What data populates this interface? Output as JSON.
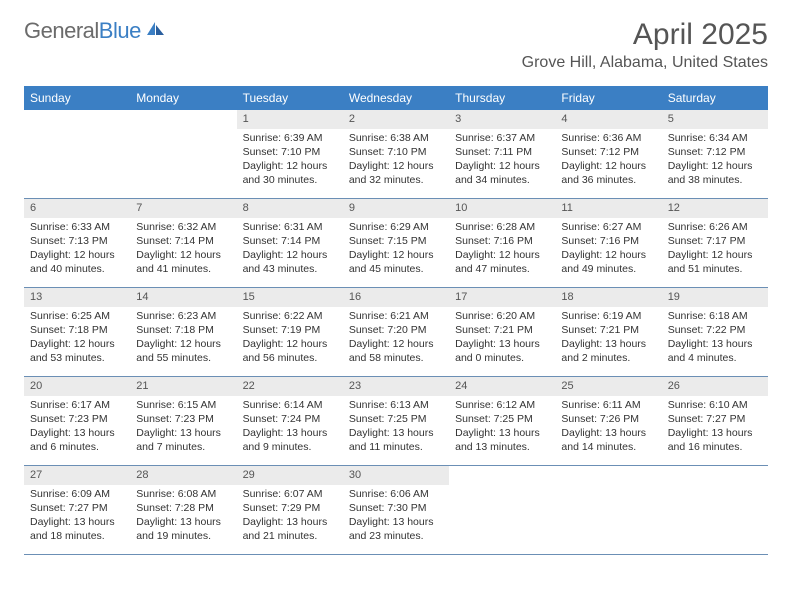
{
  "branding": {
    "logo_text_gray": "General",
    "logo_text_blue": "Blue"
  },
  "header": {
    "month_title": "April 2025",
    "location": "Grove Hill, Alabama, United States"
  },
  "colors": {
    "header_bar": "#3b7fc4",
    "daynum_bg": "#ebebeb",
    "week_divider": "#6b8fb5",
    "text": "#333333",
    "muted_text": "#555555",
    "background": "#ffffff"
  },
  "day_names": [
    "Sunday",
    "Monday",
    "Tuesday",
    "Wednesday",
    "Thursday",
    "Friday",
    "Saturday"
  ],
  "weeks": [
    [
      {
        "day": "",
        "sunrise": "",
        "sunset": "",
        "daylight": ""
      },
      {
        "day": "",
        "sunrise": "",
        "sunset": "",
        "daylight": ""
      },
      {
        "day": "1",
        "sunrise": "Sunrise: 6:39 AM",
        "sunset": "Sunset: 7:10 PM",
        "daylight": "Daylight: 12 hours and 30 minutes."
      },
      {
        "day": "2",
        "sunrise": "Sunrise: 6:38 AM",
        "sunset": "Sunset: 7:10 PM",
        "daylight": "Daylight: 12 hours and 32 minutes."
      },
      {
        "day": "3",
        "sunrise": "Sunrise: 6:37 AM",
        "sunset": "Sunset: 7:11 PM",
        "daylight": "Daylight: 12 hours and 34 minutes."
      },
      {
        "day": "4",
        "sunrise": "Sunrise: 6:36 AM",
        "sunset": "Sunset: 7:12 PM",
        "daylight": "Daylight: 12 hours and 36 minutes."
      },
      {
        "day": "5",
        "sunrise": "Sunrise: 6:34 AM",
        "sunset": "Sunset: 7:12 PM",
        "daylight": "Daylight: 12 hours and 38 minutes."
      }
    ],
    [
      {
        "day": "6",
        "sunrise": "Sunrise: 6:33 AM",
        "sunset": "Sunset: 7:13 PM",
        "daylight": "Daylight: 12 hours and 40 minutes."
      },
      {
        "day": "7",
        "sunrise": "Sunrise: 6:32 AM",
        "sunset": "Sunset: 7:14 PM",
        "daylight": "Daylight: 12 hours and 41 minutes."
      },
      {
        "day": "8",
        "sunrise": "Sunrise: 6:31 AM",
        "sunset": "Sunset: 7:14 PM",
        "daylight": "Daylight: 12 hours and 43 minutes."
      },
      {
        "day": "9",
        "sunrise": "Sunrise: 6:29 AM",
        "sunset": "Sunset: 7:15 PM",
        "daylight": "Daylight: 12 hours and 45 minutes."
      },
      {
        "day": "10",
        "sunrise": "Sunrise: 6:28 AM",
        "sunset": "Sunset: 7:16 PM",
        "daylight": "Daylight: 12 hours and 47 minutes."
      },
      {
        "day": "11",
        "sunrise": "Sunrise: 6:27 AM",
        "sunset": "Sunset: 7:16 PM",
        "daylight": "Daylight: 12 hours and 49 minutes."
      },
      {
        "day": "12",
        "sunrise": "Sunrise: 6:26 AM",
        "sunset": "Sunset: 7:17 PM",
        "daylight": "Daylight: 12 hours and 51 minutes."
      }
    ],
    [
      {
        "day": "13",
        "sunrise": "Sunrise: 6:25 AM",
        "sunset": "Sunset: 7:18 PM",
        "daylight": "Daylight: 12 hours and 53 minutes."
      },
      {
        "day": "14",
        "sunrise": "Sunrise: 6:23 AM",
        "sunset": "Sunset: 7:18 PM",
        "daylight": "Daylight: 12 hours and 55 minutes."
      },
      {
        "day": "15",
        "sunrise": "Sunrise: 6:22 AM",
        "sunset": "Sunset: 7:19 PM",
        "daylight": "Daylight: 12 hours and 56 minutes."
      },
      {
        "day": "16",
        "sunrise": "Sunrise: 6:21 AM",
        "sunset": "Sunset: 7:20 PM",
        "daylight": "Daylight: 12 hours and 58 minutes."
      },
      {
        "day": "17",
        "sunrise": "Sunrise: 6:20 AM",
        "sunset": "Sunset: 7:21 PM",
        "daylight": "Daylight: 13 hours and 0 minutes."
      },
      {
        "day": "18",
        "sunrise": "Sunrise: 6:19 AM",
        "sunset": "Sunset: 7:21 PM",
        "daylight": "Daylight: 13 hours and 2 minutes."
      },
      {
        "day": "19",
        "sunrise": "Sunrise: 6:18 AM",
        "sunset": "Sunset: 7:22 PM",
        "daylight": "Daylight: 13 hours and 4 minutes."
      }
    ],
    [
      {
        "day": "20",
        "sunrise": "Sunrise: 6:17 AM",
        "sunset": "Sunset: 7:23 PM",
        "daylight": "Daylight: 13 hours and 6 minutes."
      },
      {
        "day": "21",
        "sunrise": "Sunrise: 6:15 AM",
        "sunset": "Sunset: 7:23 PM",
        "daylight": "Daylight: 13 hours and 7 minutes."
      },
      {
        "day": "22",
        "sunrise": "Sunrise: 6:14 AM",
        "sunset": "Sunset: 7:24 PM",
        "daylight": "Daylight: 13 hours and 9 minutes."
      },
      {
        "day": "23",
        "sunrise": "Sunrise: 6:13 AM",
        "sunset": "Sunset: 7:25 PM",
        "daylight": "Daylight: 13 hours and 11 minutes."
      },
      {
        "day": "24",
        "sunrise": "Sunrise: 6:12 AM",
        "sunset": "Sunset: 7:25 PM",
        "daylight": "Daylight: 13 hours and 13 minutes."
      },
      {
        "day": "25",
        "sunrise": "Sunrise: 6:11 AM",
        "sunset": "Sunset: 7:26 PM",
        "daylight": "Daylight: 13 hours and 14 minutes."
      },
      {
        "day": "26",
        "sunrise": "Sunrise: 6:10 AM",
        "sunset": "Sunset: 7:27 PM",
        "daylight": "Daylight: 13 hours and 16 minutes."
      }
    ],
    [
      {
        "day": "27",
        "sunrise": "Sunrise: 6:09 AM",
        "sunset": "Sunset: 7:27 PM",
        "daylight": "Daylight: 13 hours and 18 minutes."
      },
      {
        "day": "28",
        "sunrise": "Sunrise: 6:08 AM",
        "sunset": "Sunset: 7:28 PM",
        "daylight": "Daylight: 13 hours and 19 minutes."
      },
      {
        "day": "29",
        "sunrise": "Sunrise: 6:07 AM",
        "sunset": "Sunset: 7:29 PM",
        "daylight": "Daylight: 13 hours and 21 minutes."
      },
      {
        "day": "30",
        "sunrise": "Sunrise: 6:06 AM",
        "sunset": "Sunset: 7:30 PM",
        "daylight": "Daylight: 13 hours and 23 minutes."
      },
      {
        "day": "",
        "sunrise": "",
        "sunset": "",
        "daylight": ""
      },
      {
        "day": "",
        "sunrise": "",
        "sunset": "",
        "daylight": ""
      },
      {
        "day": "",
        "sunrise": "",
        "sunset": "",
        "daylight": ""
      }
    ]
  ]
}
